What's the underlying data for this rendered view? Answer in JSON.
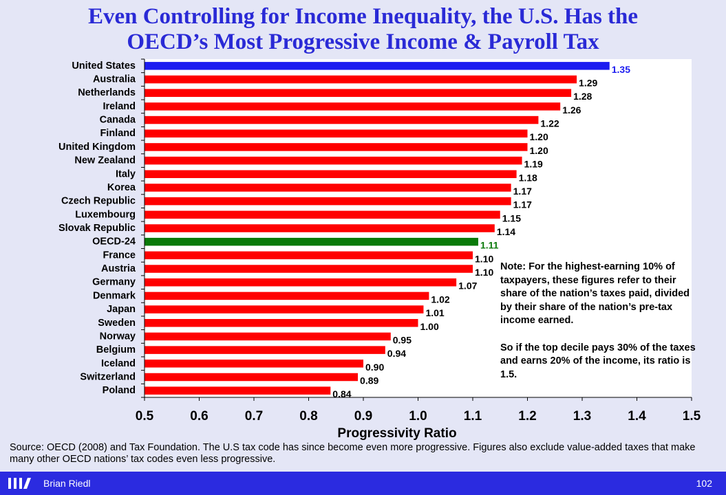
{
  "slide": {
    "title_line1": "Even Controlling for Income Inequality, the U.S. Has the",
    "title_line2": "OECD’s Most Progressive Income & Payroll Tax",
    "note_line1": "Note: For the highest-earning 10% of taxpayers, these figures refer to their share of the nation’s taxes paid, divided by their share of the nation’s pre-tax income earned.",
    "note_line2": "So if the top decile pays 30% of the taxes and earns 20% of the income, its ratio is 1.5.",
    "source": "Source: OECD (2008) and Tax Foundation. The U.S tax code has since become even more progressive. Figures also exclude value-added taxes that make many other OECD nations’ tax codes even less progressive.",
    "author": "Brian Riedl",
    "page_number": "102"
  },
  "colors": {
    "title": "#2a2ad6",
    "highlight_us": "#1c1cf0",
    "highlight_oecd": "#0a7a0a",
    "bar_default": "#ff0000",
    "footer": "#2b2be0"
  },
  "chart_data": {
    "type": "bar",
    "orientation": "horizontal",
    "xlabel": "Progressivity Ratio",
    "xlim": [
      0.5,
      1.5
    ],
    "xticks": [
      0.5,
      0.6,
      0.7,
      0.8,
      0.9,
      1.0,
      1.1,
      1.2,
      1.3,
      1.4,
      1.5
    ],
    "xtick_labels": [
      "0.5",
      "0.6",
      "0.7",
      "0.8",
      "0.9",
      "1.0",
      "1.1",
      "1.2",
      "1.3",
      "1.4",
      "1.5"
    ],
    "categories": [
      "United States",
      "Australia",
      "Netherlands",
      "Ireland",
      "Canada",
      "Finland",
      "United Kingdom",
      "New Zealand",
      "Italy",
      "Korea",
      "Czech Republic",
      "Luxembourg",
      "Slovak Republic",
      "OECD-24",
      "France",
      "Austria",
      "Germany",
      "Denmark",
      "Japan",
      "Sweden",
      "Norway",
      "Belgium",
      "Iceland",
      "Switzerland",
      "Poland"
    ],
    "values": [
      1.35,
      1.29,
      1.28,
      1.26,
      1.22,
      1.2,
      1.2,
      1.19,
      1.18,
      1.17,
      1.17,
      1.15,
      1.14,
      1.11,
      1.1,
      1.1,
      1.07,
      1.02,
      1.01,
      1.0,
      0.95,
      0.94,
      0.9,
      0.89,
      0.84
    ],
    "value_labels": [
      "1.35",
      "1.29",
      "1.28",
      "1.26",
      "1.22",
      "1.20",
      "1.20",
      "1.19",
      "1.18",
      "1.17",
      "1.17",
      "1.15",
      "1.14",
      "1.11",
      "1.10",
      "1.10",
      "1.07",
      "1.02",
      "1.01",
      "1.00",
      "0.95",
      "0.94",
      "0.90",
      "0.89",
      "0.84"
    ],
    "bar_colors": [
      "#1c1cf0",
      "#ff0000",
      "#ff0000",
      "#ff0000",
      "#ff0000",
      "#ff0000",
      "#ff0000",
      "#ff0000",
      "#ff0000",
      "#ff0000",
      "#ff0000",
      "#ff0000",
      "#ff0000",
      "#0a7a0a",
      "#ff0000",
      "#ff0000",
      "#ff0000",
      "#ff0000",
      "#ff0000",
      "#ff0000",
      "#ff0000",
      "#ff0000",
      "#ff0000",
      "#ff0000",
      "#ff0000"
    ],
    "label_colors": [
      "#1c1cf0",
      "#000000",
      "#000000",
      "#000000",
      "#000000",
      "#000000",
      "#000000",
      "#000000",
      "#000000",
      "#000000",
      "#000000",
      "#000000",
      "#000000",
      "#0a7a0a",
      "#000000",
      "#000000",
      "#000000",
      "#000000",
      "#000000",
      "#000000",
      "#000000",
      "#000000",
      "#000000",
      "#000000",
      "#000000"
    ],
    "grid": false,
    "legend": "none"
  }
}
